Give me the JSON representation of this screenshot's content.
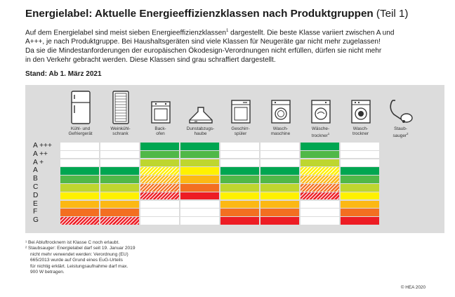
{
  "title": {
    "bold": "Energielabel: Aktuelle Energieeffizienzklassen nach Produktgruppen",
    "light": "(Teil 1)"
  },
  "intro": {
    "line1_a": "Auf dem Energielabel sind meist sieben Energieeffizienzklassen",
    "line1_sup": "1",
    "line1_b": " dargestellt. Die beste Klasse variiert zwischen A und",
    "line2": "A+++, je nach Produktgruppe. Bei Haushaltsgeräten sind viele Klassen für Neugeräte gar nicht mehr zugelassen!",
    "line3": "Da sie die Mindestanforderungen der europäischen Ökodesign-Verordnungen nicht erfüllen, dürfen sie nicht mehr",
    "line4": "in den Verkehr gebracht werden. Diese Klassen sind grau schraffiert dargestellt."
  },
  "stand": "Stand: Ab 1. März 2021",
  "colors": {
    "dark_green": "#00a651",
    "green": "#50b848",
    "light_green": "#bed62f",
    "yellow": "#fff100",
    "orange": "#fcb814",
    "dark_orange": "#f36f21",
    "red": "#ed1c24",
    "hatch_gray": "#bdbdbd",
    "panel": "#dcdcdc"
  },
  "classes": [
    "A +++",
    "A ++",
    "A +",
    "A",
    "B",
    "C",
    "D",
    "E",
    "F",
    "G"
  ],
  "products": [
    {
      "line1": "Kühl- und",
      "line2": "Gefriergerät",
      "sup": "",
      "icon": "fridge-icon",
      "cells": [
        "w",
        "w",
        "w",
        "dg",
        "g",
        "lg",
        "y",
        "o",
        "do",
        "rh"
      ]
    },
    {
      "line1": "Weinkühl-",
      "line2": "schrank",
      "sup": "",
      "icon": "wine-cooler-icon",
      "cells": [
        "w",
        "w",
        "w",
        "dg",
        "g",
        "lg",
        "y",
        "o",
        "do",
        "rh"
      ]
    },
    {
      "line1": "Back-",
      "line2": "ofen",
      "sup": "",
      "icon": "oven-icon",
      "cells": [
        "dg",
        "g",
        "lg",
        "yh",
        "oh",
        "doh",
        "rh",
        "w",
        "w",
        "w"
      ]
    },
    {
      "line1": "Dunstabzugs-",
      "line2": "haube",
      "sup": "",
      "icon": "hood-icon",
      "cells": [
        "dg",
        "g",
        "lg",
        "y",
        "o",
        "do",
        "r",
        "w",
        "w",
        "w"
      ]
    },
    {
      "line1": "Geschirr-",
      "line2": "spüler",
      "sup": "",
      "icon": "dishwasher-icon",
      "cells": [
        "w",
        "w",
        "w",
        "dg",
        "g",
        "lg",
        "y",
        "o",
        "do",
        "r"
      ]
    },
    {
      "line1": "Wasch-",
      "line2": "maschine",
      "sup": "",
      "icon": "washing-machine-icon",
      "cells": [
        "w",
        "w",
        "w",
        "dg",
        "g",
        "lg",
        "y",
        "o",
        "do",
        "r"
      ]
    },
    {
      "line1": "Wäsche-",
      "line2": "trockner",
      "sup": "1",
      "icon": "dryer-icon",
      "cells": [
        "dg",
        "g",
        "lg",
        "yh",
        "oh",
        "doh",
        "rh",
        "w",
        "w",
        "w"
      ]
    },
    {
      "line1": "Wasch-",
      "line2": "trockner",
      "sup": "",
      "icon": "washer-dryer-icon",
      "cells": [
        "w",
        "w",
        "w",
        "dg",
        "g",
        "lg",
        "y",
        "o",
        "do",
        "r"
      ]
    },
    {
      "line1": "Staub-",
      "line2": "sauger",
      "sup": "2",
      "icon": "vacuum-cleaner-icon",
      "cells": []
    }
  ],
  "footnotes": {
    "fn1": "¹ Bei Abluftrocknern ist Klasse C noch erlaubt.",
    "fn2_l1": "² Staubsauger: Energielabel darf seit 19. Januar 2019",
    "fn2_l2": "nicht mehr verwendet werden: Verordnung (EU)",
    "fn2_l3": "665/2013 wurde auf Grund eines EuG-Urteils",
    "fn2_l4": "für nichtig erklärt. Leistungsaufnahme darf max.",
    "fn2_l5": "900 W betragen."
  },
  "copyright": "© HEA 2020"
}
